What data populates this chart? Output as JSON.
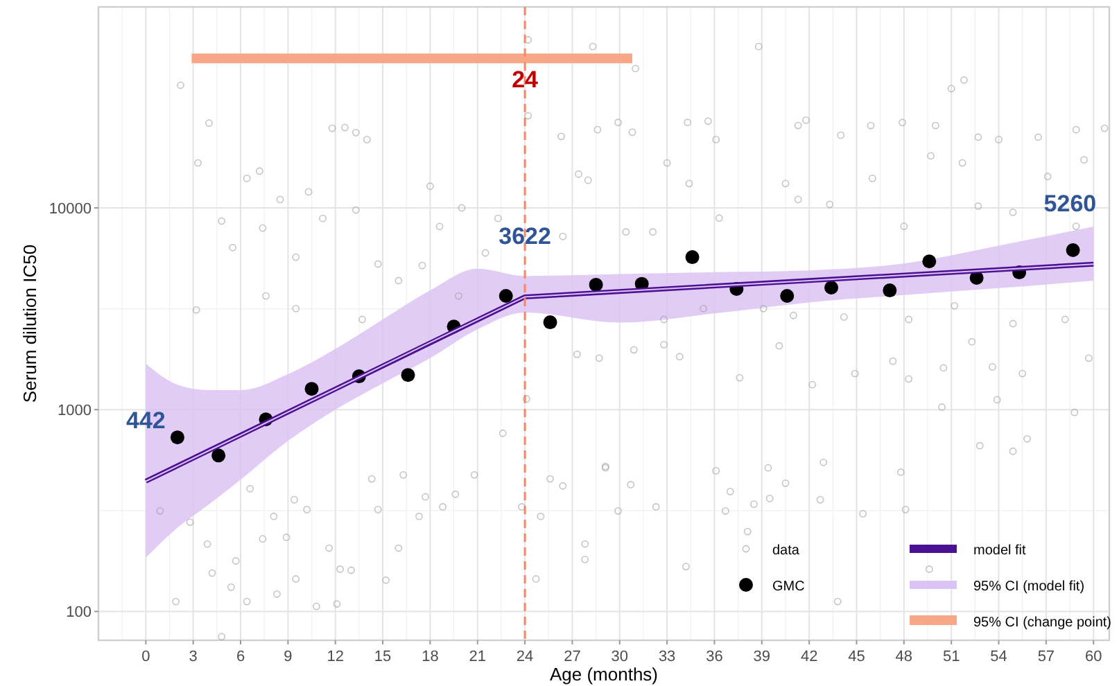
{
  "chart_data": {
    "type": "scatter",
    "xlabel": "Age (months)",
    "ylabel": "Serum dilution IC50",
    "xlim": [
      -3,
      61
    ],
    "xticks": [
      0,
      3,
      6,
      9,
      12,
      15,
      18,
      21,
      24,
      27,
      30,
      33,
      36,
      39,
      42,
      45,
      48,
      51,
      54,
      57,
      60
    ],
    "ylim": [
      72,
      99000
    ],
    "yticks": [
      100,
      1000,
      10000
    ],
    "log": "y",
    "grid": true,
    "legend": "bottom right",
    "series": [
      {
        "name": "data",
        "marker": "circle",
        "color": "#9e9e9e",
        "x": [
          2.2,
          4.0,
          3.3,
          6.4,
          7.2,
          11.8,
          12.6,
          13.3,
          14.0,
          10.3,
          8.5,
          18.0,
          20.0,
          24.2,
          28.3,
          38.8,
          51.0,
          51.8,
          31.0,
          1.9,
          4.8,
          2.8,
          4.2,
          5.4,
          6.4,
          5.7,
          3.9,
          8.1,
          8.3,
          9.5,
          10.8,
          12.1,
          12.3,
          13.0,
          11.6,
          10.2,
          8.9,
          6.6,
          9.4,
          7.4,
          14.3,
          14.7,
          15.2,
          16.0,
          16.3,
          17.3,
          17.7,
          18.8,
          19.6,
          20.8,
          25.0,
          24.7,
          27.8,
          27.8,
          23.8,
          22.6,
          29.1,
          26.4,
          25.6,
          24.1,
          27.3,
          0.9,
          29.9,
          30.7,
          29.1,
          32.3,
          34.2,
          36.1,
          36.7,
          37.0,
          38.1,
          38.5,
          39.4,
          39.5,
          40.5,
          42.7,
          42.9,
          43.8,
          45.4,
          47.8,
          48.1,
          52.8,
          54.9,
          55.8,
          49.6,
          58.8,
          28.6,
          29.9,
          30.8,
          34.3,
          35.6,
          36.1,
          41.3,
          41.8,
          44.0,
          45.9,
          47.9,
          50.0,
          52.7,
          54.0,
          56.5,
          58.9,
          60.7,
          32.1,
          33.0,
          34.4,
          36.3,
          40.5,
          41.3,
          43.3,
          46.0,
          48.0,
          49.7,
          51.7,
          52.7,
          54.9,
          57.1,
          59.4,
          58.9,
          28.0,
          30.4,
          32.8,
          35.3,
          39.1,
          41.0,
          44.2,
          48.3,
          51.2,
          54.9,
          58.2,
          4.8,
          5.5,
          7.4,
          9.5,
          11.2,
          13.3,
          14.7,
          16.0,
          17.5,
          18.6,
          21.5,
          22.3,
          3.2,
          7.6,
          9.5,
          13.7,
          19.8,
          26.4,
          27.4,
          24.2,
          26.3,
          28.7,
          30.9,
          32.8,
          33.8,
          37.6,
          40.1,
          42.2,
          44.9,
          47.3,
          48.3,
          50.5,
          52.3,
          53.6,
          55.5,
          59.7,
          50.4,
          53.9
        ],
        "values": [
          40500,
          26300,
          16700,
          14000,
          15200,
          24800,
          25000,
          23600,
          21800,
          12000,
          11000,
          12800,
          10000,
          68000,
          63000,
          63000,
          39000,
          43000,
          49000,
          112,
          75,
          277,
          155,
          132,
          112,
          178,
          216,
          296,
          122,
          145,
          106,
          109,
          162,
          160,
          206,
          320,
          233,
          406,
          358,
          229,
          454,
          320,
          143,
          206,
          475,
          296,
          370,
          330,
          381,
          475,
          296,
          145,
          181,
          216,
          330,
          764,
          515,
          419,
          454,
          1130,
          1880,
          315,
          315,
          425,
          523,
          330,
          167,
          498,
          315,
          393,
          249,
          340,
          515,
          363,
          432,
          358,
          548,
          112,
          305,
          490,
          320,
          663,
          622,
          717,
          162,
          969,
          24400,
          26500,
          23700,
          26500,
          26900,
          21800,
          25600,
          27200,
          22900,
          25600,
          26500,
          25600,
          22400,
          21800,
          22400,
          24400,
          24800,
          7600,
          16700,
          13200,
          8900,
          13200,
          11000,
          10400,
          14000,
          8100,
          18100,
          16700,
          10200,
          9500,
          14300,
          17300,
          8100,
          13700,
          7600,
          2800,
          3170,
          3170,
          2930,
          2880,
          2800,
          3270,
          2670,
          2800,
          8600,
          6360,
          7940,
          5700,
          8870,
          9760,
          5270,
          4360,
          5180,
          8090,
          5980,
          8870,
          3120,
          3660,
          3170,
          2800,
          3660,
          7220,
          14700,
          28600,
          22600,
          1800,
          1980,
          2100,
          1830,
          1440,
          2070,
          1330,
          1510,
          1740,
          1420,
          1610,
          2170,
          1630,
          1510,
          1800,
          1030,
          1120
        ]
      },
      {
        "name": "GMC",
        "marker": "circle",
        "color": "#000000",
        "x": [
          2.0,
          4.6,
          7.6,
          10.5,
          13.5,
          16.6,
          19.5,
          22.8,
          25.6,
          28.5,
          31.4,
          34.6,
          37.4,
          40.6,
          43.4,
          47.1,
          49.6,
          52.6,
          55.3,
          58.7
        ],
        "values": [
          729,
          593,
          895,
          1268,
          1463,
          1485,
          2582,
          3664,
          2711,
          4159,
          4200,
          5700,
          3966,
          3664,
          4027,
          3900,
          5430,
          4500,
          4790,
          6170
        ]
      },
      {
        "name": "model fit",
        "type": "line",
        "color": "#4b1190",
        "x": [
          0,
          24,
          60
        ],
        "values": [
          442,
          3622,
          5260
        ]
      },
      {
        "name": "95% CI (model fit)",
        "type": "line",
        "color": "#dcc3f5",
        "x": [
          0,
          2,
          4,
          6,
          9,
          12,
          15,
          18,
          21,
          24,
          30,
          36,
          42,
          48,
          54,
          60
        ],
        "values": [
          442,
          526,
          627,
          747,
          974,
          1265,
          1650,
          2150,
          2790,
          3622,
          3854,
          4100,
          4363,
          4643,
          4940,
          5260
        ],
        "lower": [
          185,
          260,
          340,
          450,
          700,
          1000,
          1350,
          1800,
          2500,
          3030,
          2700,
          3000,
          3400,
          3700,
          4000,
          4360
        ],
        "upper": [
          1690,
          1330,
          1250,
          1250,
          1500,
          2000,
          2800,
          3900,
          5000,
          4600,
          4700,
          4800,
          4900,
          5300,
          6500,
          8080
        ]
      },
      {
        "name": "95% CI (change point)",
        "type": "line",
        "color": "#f7a686",
        "x": [
          2.9,
          30.8
        ],
        "values": [
          55000,
          55000
        ]
      }
    ],
    "ref_lines": [
      {
        "axis": "x",
        "value": 24,
        "label": "24",
        "color": "#f08a6a",
        "line_style": "dashed"
      }
    ],
    "annotations": [
      {
        "text": "442",
        "x": 0,
        "y": 442
      },
      {
        "text": "3622",
        "x": 24,
        "y": 3622
      },
      {
        "text": "5260",
        "x": 60,
        "y": 5260
      }
    ]
  }
}
